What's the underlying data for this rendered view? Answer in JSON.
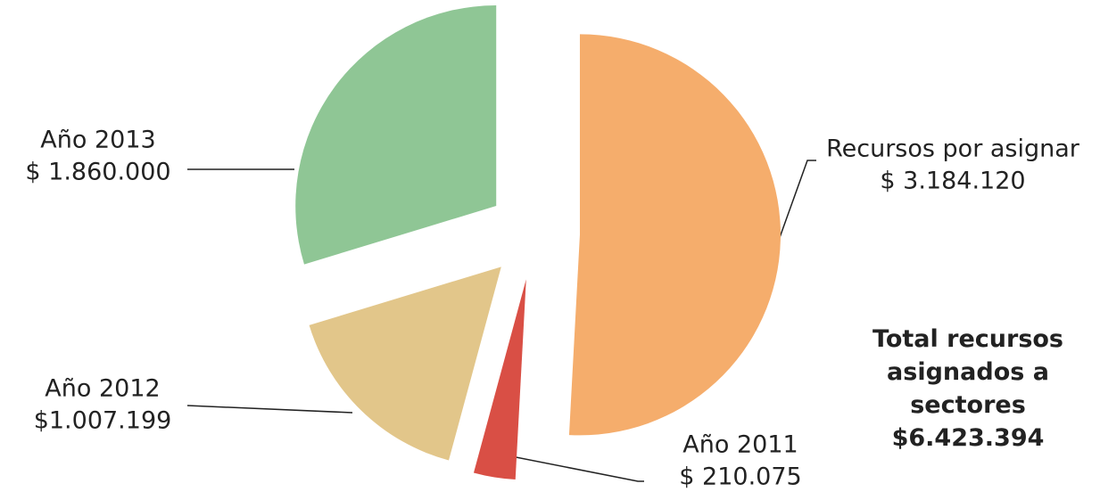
{
  "chart_data": {
    "type": "pie",
    "categories": [
      "Recursos por asignar",
      "Año 2011",
      "Año 2012",
      "Año 2013"
    ],
    "values": [
      3184120,
      210075,
      1007199,
      1860000
    ],
    "value_labels": [
      "$ 3.184.120",
      "$ 210.075",
      "$1.007.199",
      "$ 1.860.000"
    ],
    "colors": [
      "#f5ad6c",
      "#d94f45",
      "#e2c68a",
      "#8fc695"
    ],
    "annotation": {
      "text": "Total recursos asignados a sectores",
      "value_label": "$6.423.394"
    }
  }
}
